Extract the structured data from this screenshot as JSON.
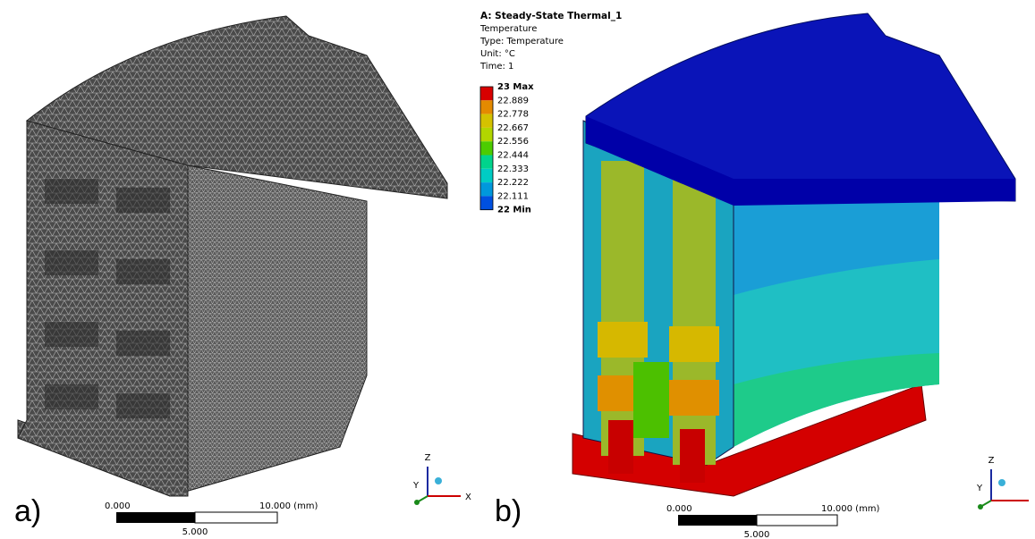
{
  "panels": [
    {
      "label": "a)",
      "scale_bar": {
        "start": "0.000",
        "mid": "5.000",
        "end": "10.000 (mm)"
      },
      "triad": {
        "z": "Z",
        "y": "Y",
        "x": "X"
      }
    },
    {
      "label": "b)",
      "scale_bar": {
        "start": "0.000",
        "mid": "5.000",
        "end": "10.000 (mm)"
      },
      "triad": {
        "z": "Z",
        "y": "Y"
      }
    }
  ],
  "legend": {
    "title": "A: Steady-State Thermal_1",
    "lines": [
      "Temperature",
      "Type: Temperature",
      "Unit: °C",
      "Time: 1"
    ],
    "labels": [
      "23 Max",
      "22.889",
      "22.778",
      "22.667",
      "22.556",
      "22.444",
      "22.333",
      "22.222",
      "22.111",
      "22 Min"
    ],
    "band_colors": [
      "#d80000",
      "#e48a00",
      "#d4c200",
      "#b2d600",
      "#4ccc00",
      "#00d48c",
      "#00ccc4",
      "#0098dc",
      "#0050e0"
    ]
  }
}
